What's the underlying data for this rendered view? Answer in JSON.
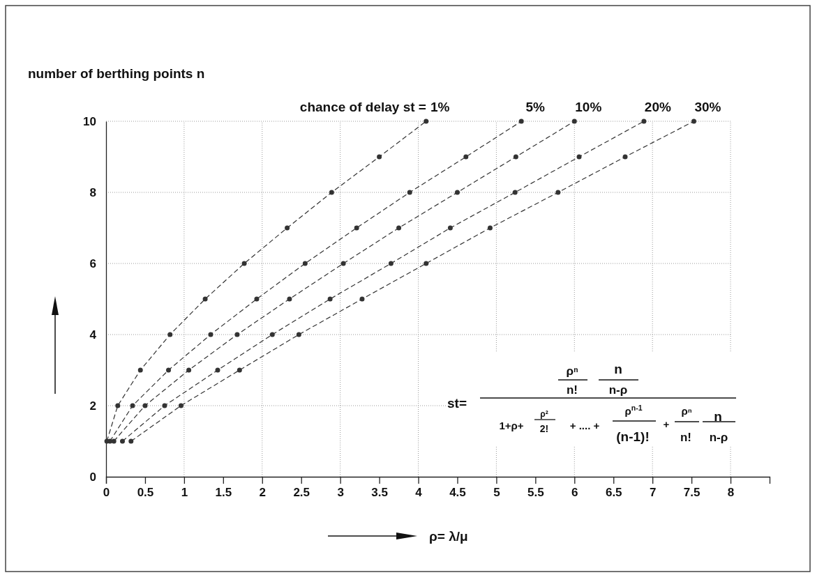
{
  "chart_data": {
    "type": "line",
    "ylabel": "number of berthing points n",
    "xlabel": "ρ= λ/μ",
    "legend_title": "chance of delay st =",
    "xlim": [
      0,
      8.5
    ],
    "ylim": [
      0,
      10
    ],
    "xticks": [
      0,
      0.5,
      1,
      1.5,
      2,
      2.5,
      3,
      3.5,
      4,
      4.5,
      5,
      5.5,
      6,
      6.5,
      7,
      7.5,
      8
    ],
    "yticks": [
      0,
      2,
      4,
      6,
      8,
      10
    ],
    "grid": true,
    "marker": "circle",
    "line_style": "dashed",
    "legend": "top",
    "annotations": [
      "st=",
      "ρⁿ",
      "n!",
      "n",
      "n-ρ",
      "1+ρ+",
      "ρ²",
      "2!",
      "+ .... +",
      "ρ$^{n-1}$",
      "(n-1)!",
      "+",
      "ρⁿ",
      "n!",
      "n",
      "n-ρ"
    ],
    "series": [
      {
        "name": "1%",
        "color": "#333333",
        "x": [
          0.01,
          0.15,
          0.44,
          0.82,
          1.27,
          1.77,
          2.32,
          2.89,
          3.5,
          4.1
        ],
        "values": [
          1,
          2,
          3,
          4,
          5,
          6,
          7,
          8,
          9,
          10
        ]
      },
      {
        "name": "5%",
        "color": "#333333",
        "x": [
          0.05,
          0.34,
          0.8,
          1.34,
          1.93,
          2.55,
          3.21,
          3.89,
          4.61,
          5.32
        ],
        "values": [
          1,
          2,
          3,
          4,
          5,
          6,
          7,
          8,
          9,
          10
        ]
      },
      {
        "name": "10%",
        "color": "#333333",
        "x": [
          0.1,
          0.5,
          1.06,
          1.68,
          2.35,
          3.04,
          3.75,
          4.5,
          5.25,
          6.0
        ],
        "values": [
          1,
          2,
          3,
          4,
          5,
          6,
          7,
          8,
          9,
          10
        ]
      },
      {
        "name": "20%",
        "color": "#333333",
        "x": [
          0.21,
          0.75,
          1.43,
          2.13,
          2.87,
          3.65,
          4.41,
          5.24,
          6.06,
          6.89
        ],
        "values": [
          1,
          2,
          3,
          4,
          5,
          6,
          7,
          8,
          9,
          10
        ]
      },
      {
        "name": "30%",
        "color": "#333333",
        "x": [
          0.32,
          0.96,
          1.71,
          2.47,
          3.28,
          4.1,
          4.92,
          5.79,
          6.65,
          7.53
        ],
        "values": [
          1,
          2,
          3,
          4,
          5,
          6,
          7,
          8,
          9,
          10
        ]
      }
    ]
  }
}
